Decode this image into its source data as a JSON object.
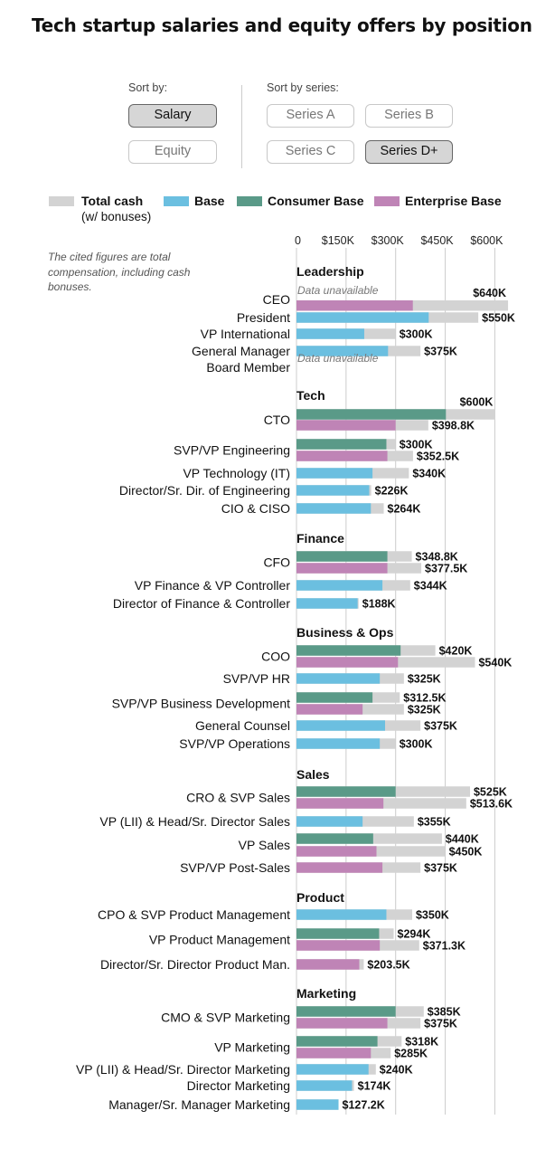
{
  "title": "Tech startup salaries and equity offers by position",
  "controls": {
    "sort_by_label": "Sort by:",
    "sort_by_options": [
      "Salary",
      "Equity"
    ],
    "sort_by_selected": "Salary",
    "series_label": "Sort by series:",
    "series_options": [
      "Series A",
      "Series B",
      "Series C",
      "Series D+"
    ],
    "series_selected": "Series D+"
  },
  "note": "The cited figures are total compensation, including cash bonuses.",
  "legend": {
    "total_cash": "Total cash",
    "total_cash_sub": "(w/ bonuses)",
    "base": "Base",
    "consumer_base": "Consumer Base",
    "enterprise_base": "Enterprise Base"
  },
  "colors": {
    "total_cash": "#d3d3d3",
    "base": "#6bbfe0",
    "consumer_base": "#5a9a88",
    "enterprise_base": "#bf84b6",
    "gridline": "#cccccc"
  },
  "chart_data": {
    "type": "bar",
    "orientation": "horizontal",
    "stacked_overlay": true,
    "xlim": [
      0,
      640
    ],
    "x_unit": "$K",
    "x_ticks": [
      0,
      150,
      300,
      450,
      600
    ],
    "x_tick_labels": [
      "0",
      "$150K",
      "$300K",
      "$450K",
      "$600K"
    ],
    "grid": true,
    "unavailable_text": "Data unavailable",
    "groups": [
      {
        "name": "Leadership",
        "positions": [
          {
            "label": "CEO",
            "note": "Data unavailable",
            "bars": [
              {
                "type": "enterprise_base",
                "base": 352,
                "total": 640,
                "total_label": "$640K"
              }
            ]
          },
          {
            "label": "President",
            "bars": [
              {
                "type": "base",
                "base": 400,
                "total": 550,
                "total_label": "$550K"
              }
            ]
          },
          {
            "label": "VP International",
            "bars": [
              {
                "type": "base",
                "base": 205,
                "total": 300,
                "total_label": "$300K"
              }
            ]
          },
          {
            "label": "General Manager",
            "bars": [
              {
                "type": "base",
                "base": 277,
                "total": 375,
                "total_label": "$375K"
              }
            ]
          },
          {
            "label": "Board Member",
            "note": "Data unavailable",
            "bars": []
          }
        ]
      },
      {
        "name": "Tech",
        "positions": [
          {
            "label": "CTO",
            "bars": [
              {
                "type": "consumer_base",
                "base": 452,
                "total": 600,
                "total_label": "$600K"
              },
              {
                "type": "enterprise_base",
                "base": 300,
                "total": 398.8,
                "total_label": "$398.8K"
              }
            ]
          },
          {
            "label": "SVP/VP Engineering",
            "bars": [
              {
                "type": "consumer_base",
                "base": 272,
                "total": 300,
                "total_label": "$300K"
              },
              {
                "type": "enterprise_base",
                "base": 275,
                "total": 352.5,
                "total_label": "$352.5K"
              }
            ]
          },
          {
            "label": "VP Technology (IT)",
            "bars": [
              {
                "type": "base",
                "base": 230,
                "total": 340,
                "total_label": "$340K"
              }
            ]
          },
          {
            "label": "Director/Sr. Dir. of Engineering",
            "bars": [
              {
                "type": "base",
                "base": 220,
                "total": 226,
                "total_label": "$226K"
              }
            ]
          },
          {
            "label": "CIO & CISO",
            "bars": [
              {
                "type": "base",
                "base": 225,
                "total": 264,
                "total_label": "$264K"
              }
            ]
          }
        ]
      },
      {
        "name": "Finance",
        "positions": [
          {
            "label": "CFO",
            "bars": [
              {
                "type": "consumer_base",
                "base": 275,
                "total": 348.8,
                "total_label": "$348.8K"
              },
              {
                "type": "enterprise_base",
                "base": 275,
                "total": 377.5,
                "total_label": "$377.5K"
              }
            ]
          },
          {
            "label": "VP Finance & VP Controller",
            "bars": [
              {
                "type": "base",
                "base": 260,
                "total": 344,
                "total_label": "$344K"
              }
            ]
          },
          {
            "label": "Director of Finance & Controller",
            "bars": [
              {
                "type": "base",
                "base": 185,
                "total": 188,
                "total_label": "$188K"
              }
            ]
          }
        ]
      },
      {
        "name": "Business & Ops",
        "positions": [
          {
            "label": "COO",
            "bars": [
              {
                "type": "consumer_base",
                "base": 315,
                "total": 420,
                "total_label": "$420K"
              },
              {
                "type": "enterprise_base",
                "base": 307,
                "total": 540,
                "total_label": "$540K"
              }
            ]
          },
          {
            "label": "SVP/VP HR",
            "bars": [
              {
                "type": "base",
                "base": 252,
                "total": 325,
                "total_label": "$325K"
              }
            ]
          },
          {
            "label": "SVP/VP Business Development",
            "bars": [
              {
                "type": "consumer_base",
                "base": 230,
                "total": 312.5,
                "total_label": "$312.5K"
              },
              {
                "type": "enterprise_base",
                "base": 200,
                "total": 325,
                "total_label": "$325K"
              }
            ]
          },
          {
            "label": "General Counsel",
            "bars": [
              {
                "type": "base",
                "base": 268,
                "total": 375,
                "total_label": "$375K"
              }
            ]
          },
          {
            "label": "SVP/VP Operations",
            "bars": [
              {
                "type": "base",
                "base": 252,
                "total": 300,
                "total_label": "$300K"
              }
            ]
          }
        ]
      },
      {
        "name": "Sales",
        "positions": [
          {
            "label": "CRO & SVP Sales",
            "bars": [
              {
                "type": "consumer_base",
                "base": 300,
                "total": 525,
                "total_label": "$525K"
              },
              {
                "type": "enterprise_base",
                "base": 263,
                "total": 513.6,
                "total_label": "$513.6K"
              }
            ]
          },
          {
            "label": "VP (LII) & Head/Sr. Director Sales",
            "bars": [
              {
                "type": "base",
                "base": 200,
                "total": 355,
                "total_label": "$355K"
              }
            ]
          },
          {
            "label": "VP Sales",
            "bars": [
              {
                "type": "consumer_base",
                "base": 232,
                "total": 440,
                "total_label": "$440K"
              },
              {
                "type": "enterprise_base",
                "base": 242,
                "total": 450,
                "total_label": "$450K"
              }
            ]
          },
          {
            "label": "SVP/VP Post-Sales",
            "bars": [
              {
                "type": "enterprise_base",
                "base": 260,
                "total": 375,
                "total_label": "$375K"
              }
            ]
          }
        ]
      },
      {
        "name": "Product",
        "positions": [
          {
            "label": "CPO & SVP Product Management",
            "bars": [
              {
                "type": "base",
                "base": 272,
                "total": 350,
                "total_label": "$350K"
              }
            ]
          },
          {
            "label": "VP Product Management",
            "bars": [
              {
                "type": "consumer_base",
                "base": 250,
                "total": 294,
                "total_label": "$294K"
              },
              {
                "type": "enterprise_base",
                "base": 252,
                "total": 371.3,
                "total_label": "$371.3K"
              }
            ]
          },
          {
            "label": "Director/Sr. Director Product Man.",
            "bars": [
              {
                "type": "enterprise_base",
                "base": 190,
                "total": 203.5,
                "total_label": "$203.5K"
              }
            ]
          }
        ]
      },
      {
        "name": "Marketing",
        "positions": [
          {
            "label": "CMO & SVP Marketing",
            "bars": [
              {
                "type": "consumer_base",
                "base": 300,
                "total": 385,
                "total_label": "$385K"
              },
              {
                "type": "enterprise_base",
                "base": 275,
                "total": 375,
                "total_label": "$375K"
              }
            ]
          },
          {
            "label": "VP Marketing",
            "bars": [
              {
                "type": "consumer_base",
                "base": 245,
                "total": 318,
                "total_label": "$318K"
              },
              {
                "type": "enterprise_base",
                "base": 225,
                "total": 285,
                "total_label": "$285K"
              }
            ]
          },
          {
            "label": "VP (LII) & Head/Sr. Director Marketing",
            "bars": [
              {
                "type": "base",
                "base": 218,
                "total": 240,
                "total_label": "$240K"
              }
            ]
          },
          {
            "label": "Director Marketing",
            "bars": [
              {
                "type": "base",
                "base": 168,
                "total": 174,
                "total_label": "$174K"
              }
            ]
          },
          {
            "label": "Manager/Sr. Manager Marketing",
            "bars": [
              {
                "type": "base",
                "base": 127.2,
                "total": 127.2,
                "total_label": "$127.2K"
              }
            ]
          }
        ]
      }
    ]
  }
}
